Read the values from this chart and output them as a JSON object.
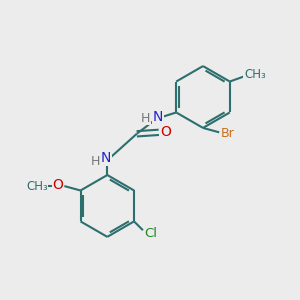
{
  "background_color": "#ececec",
  "bond_color": "#2d6e6e",
  "N_color": "#2222cc",
  "O_color": "#cc0000",
  "Br_color": "#c87020",
  "Cl_color": "#228822",
  "H_color": "#666666",
  "C_color": "#2d6e6e",
  "line_width": 1.5,
  "figsize": [
    3.0,
    3.0
  ],
  "dpi": 100,
  "xlim": [
    0,
    10
  ],
  "ylim": [
    0,
    10
  ]
}
